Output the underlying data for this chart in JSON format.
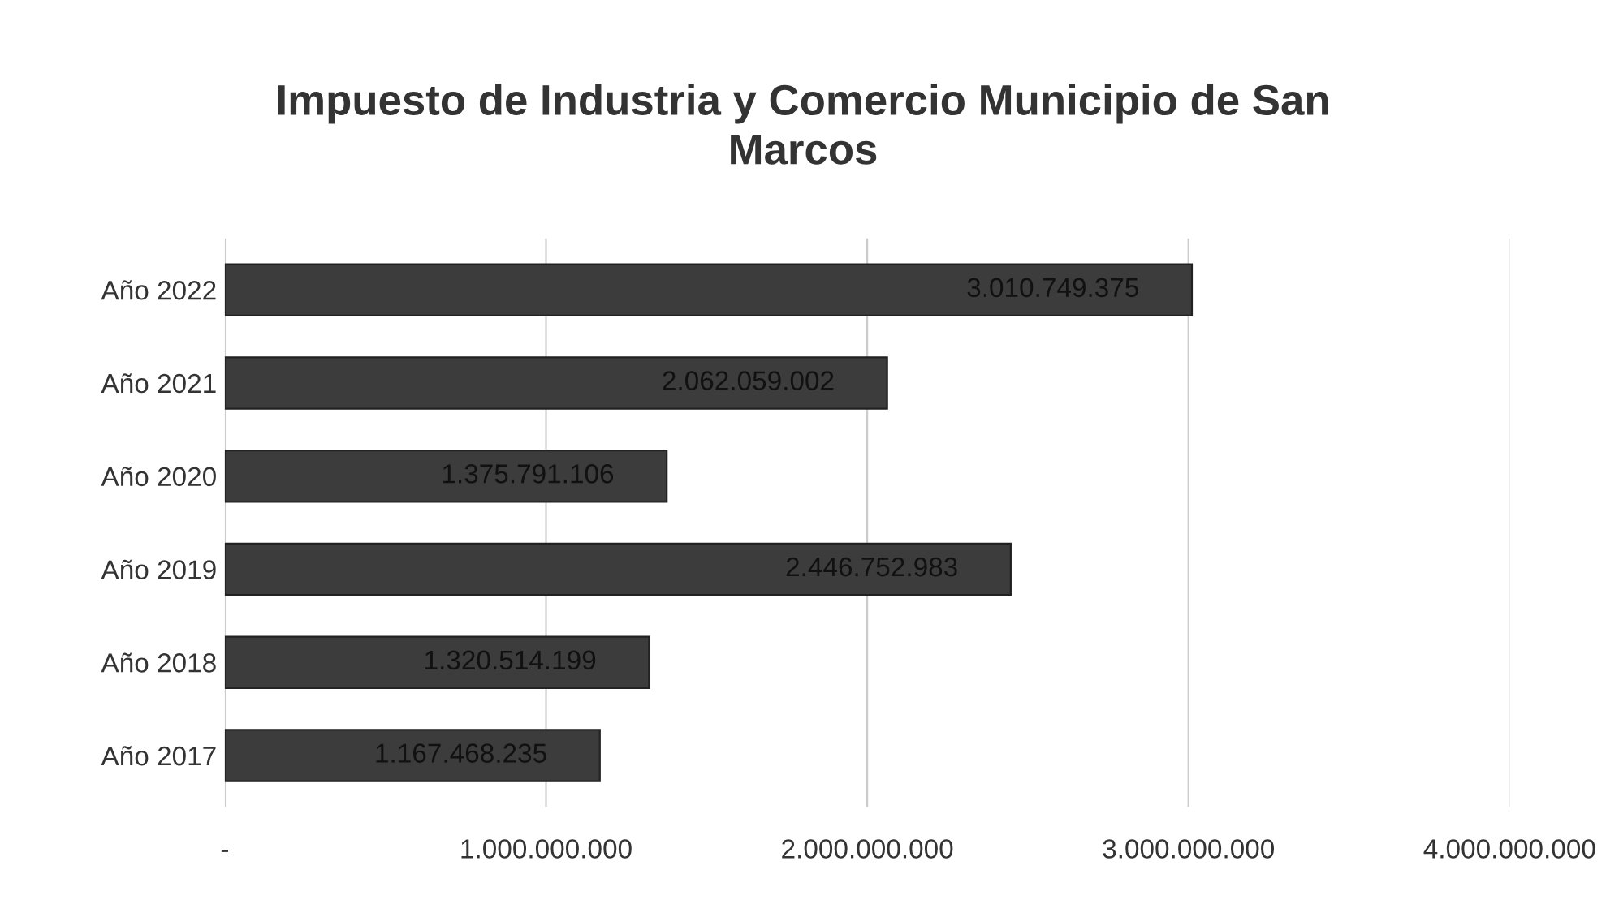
{
  "chart_data": {
    "type": "bar",
    "orientation": "horizontal",
    "title": "Impuesto de Industria y Comercio Municipio de San Marcos",
    "categories": [
      "Año 2022",
      "Año 2021",
      "Año 2020",
      "Año 2019",
      "Año 2018",
      "Año 2017"
    ],
    "values": [
      3010749375,
      2062059002,
      1375791106,
      2446752983,
      1320514199,
      1167468235
    ],
    "value_labels": [
      "3.010.749.375",
      "2.062.059.002",
      "1.375.791.106",
      "2.446.752.983",
      "1.320.514.199",
      "1.167.468.235"
    ],
    "color": "#3c3c3c",
    "xlim": [
      0,
      4000000000
    ],
    "xticks": [
      {
        "value": 0,
        "label": "-"
      },
      {
        "value": 1000000000,
        "label": "1.000.000.000"
      },
      {
        "value": 2000000000,
        "label": "2.000.000.000"
      },
      {
        "value": 3000000000,
        "label": "3.000.000.000"
      },
      {
        "value": 4000000000,
        "label": "4.000.000.000"
      }
    ],
    "grid": "x"
  }
}
